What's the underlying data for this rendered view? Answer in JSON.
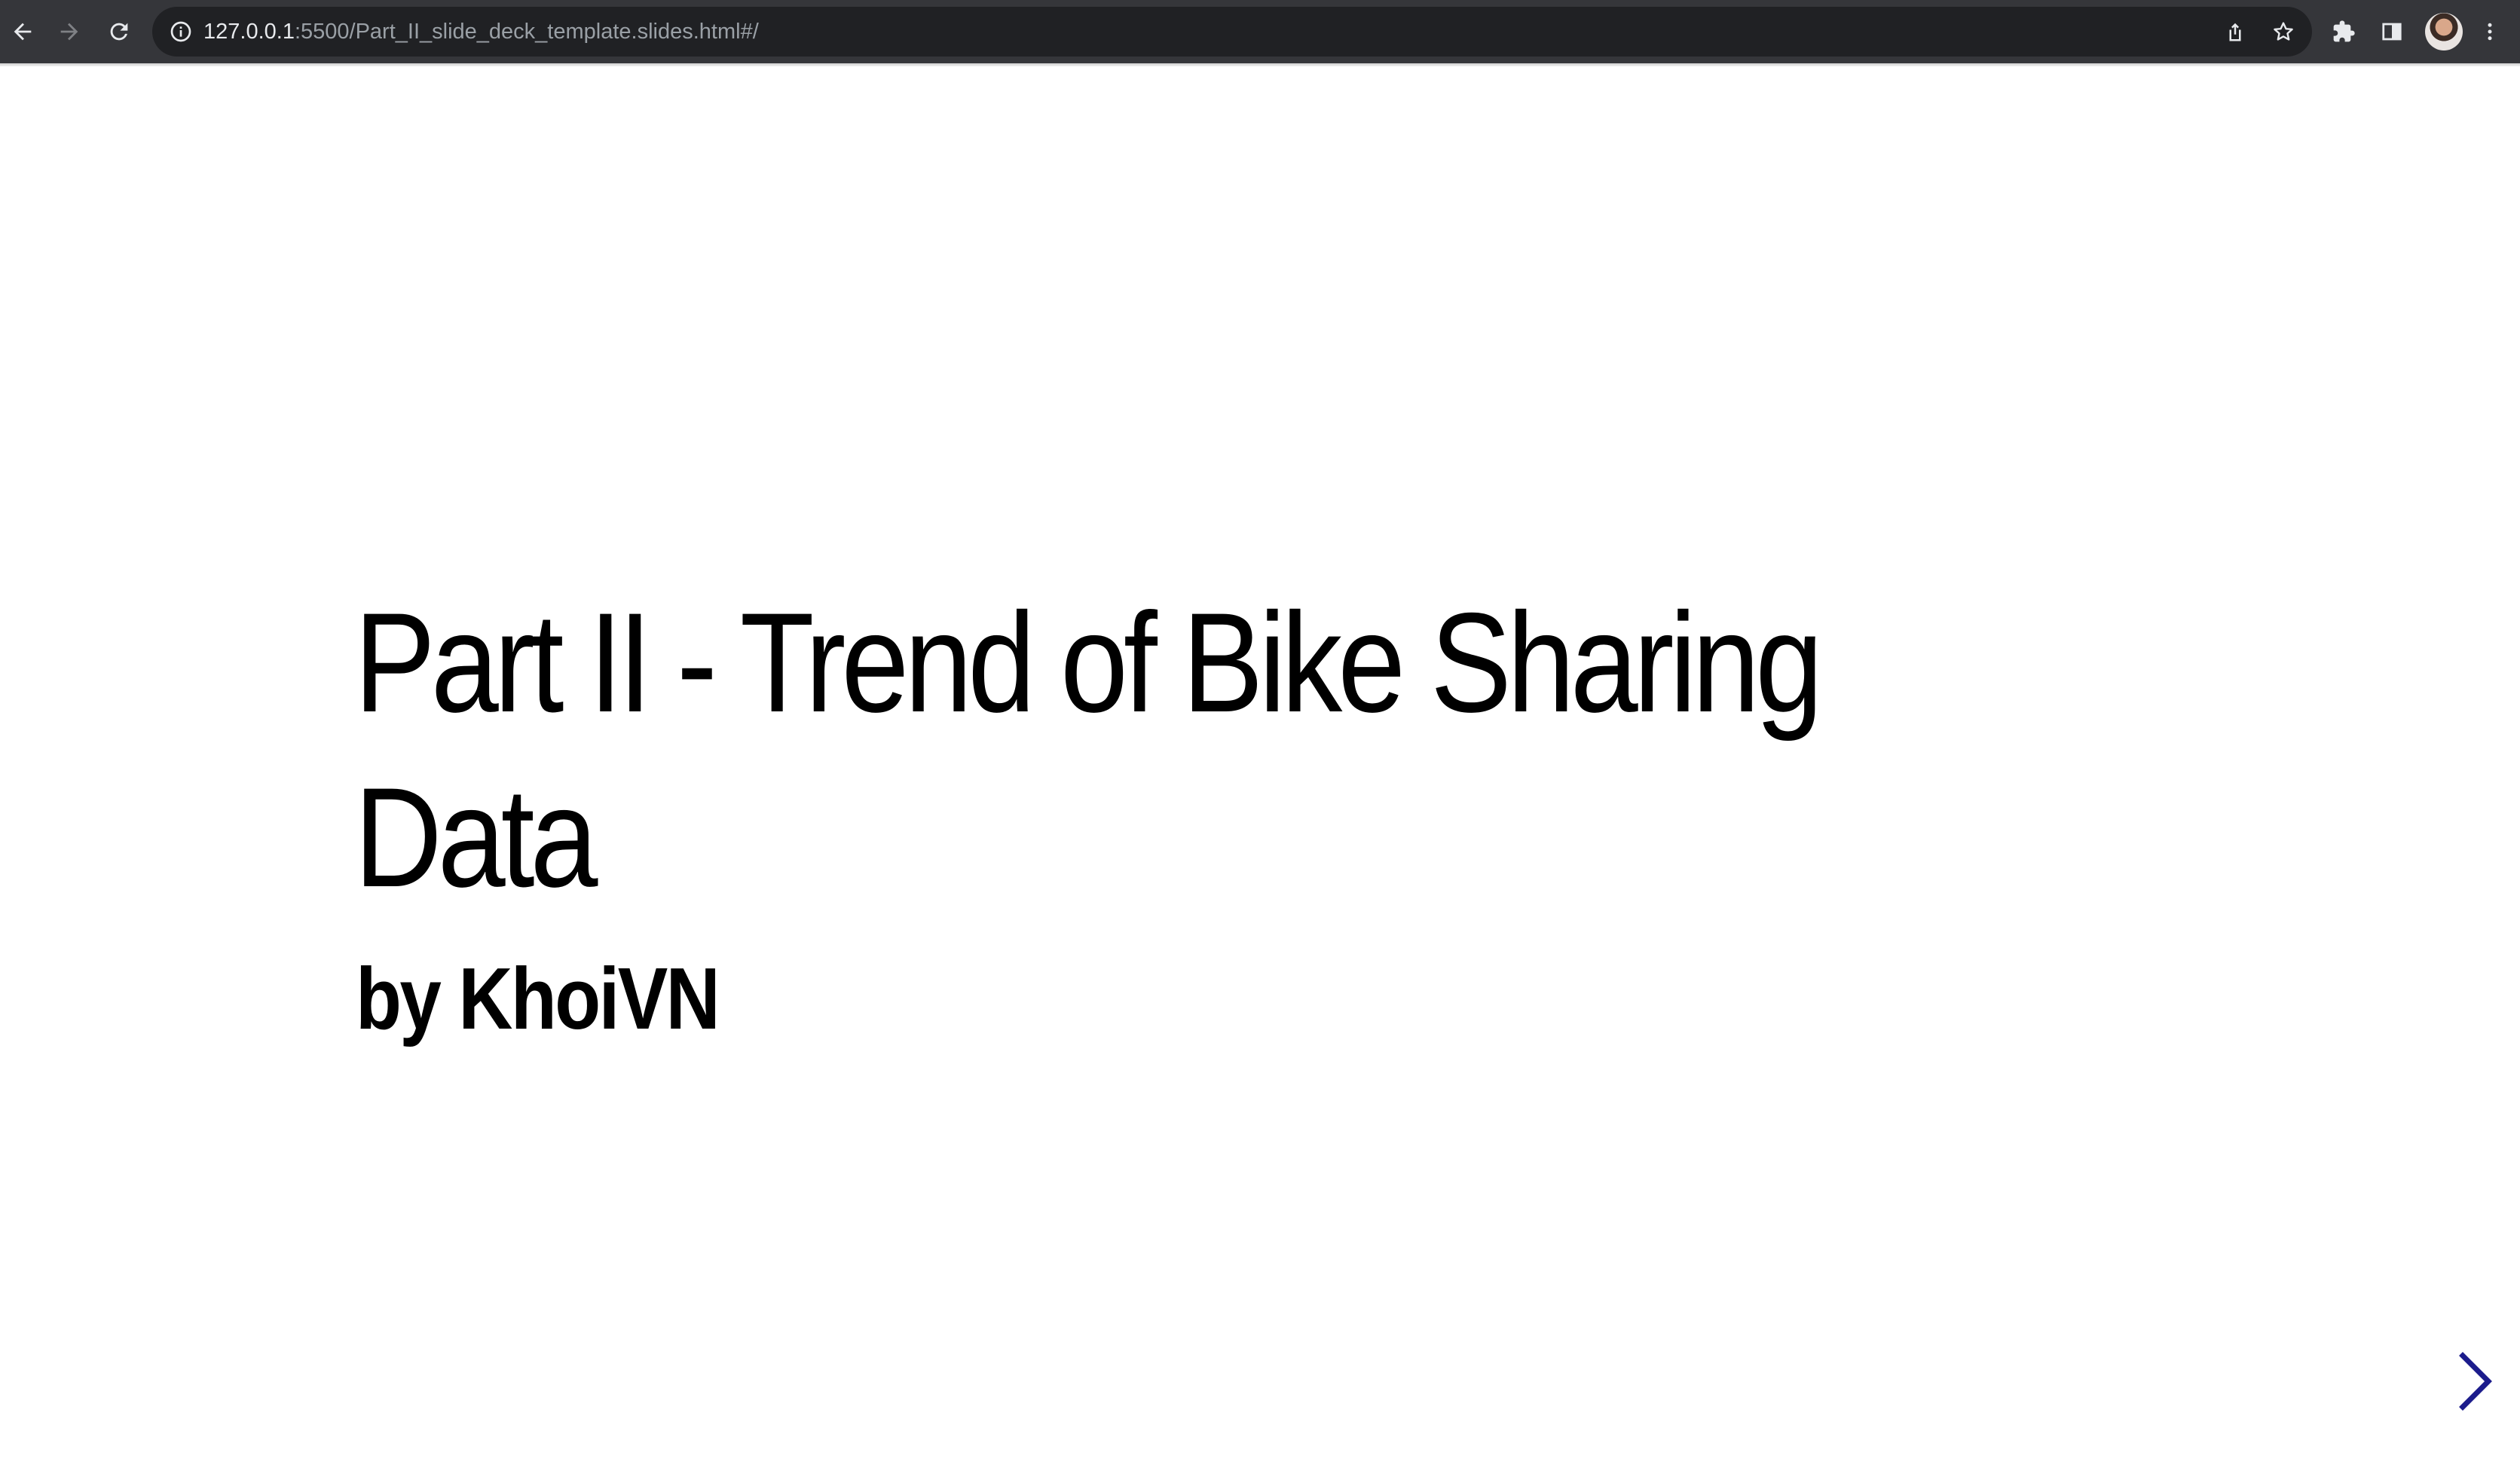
{
  "browser": {
    "url_host": "127.0.0.1",
    "url_path": ":5500/Part_II_slide_deck_template.slides.html#/",
    "icons": {
      "back": "arrow-left-icon",
      "forward": "arrow-right-icon",
      "reload": "reload-icon",
      "site_info": "info-icon",
      "share": "share-icon",
      "bookmark": "star-icon",
      "extensions": "puzzle-icon",
      "side_panel": "side-panel-icon",
      "profile": "avatar",
      "menu": "kebab-menu-icon"
    },
    "colors": {
      "toolbar_bg": "#35363a",
      "omnibox_bg": "#202124",
      "icon": "#e8eaed",
      "icon_disabled": "#7f8185"
    }
  },
  "slide": {
    "title": "Part II - Trend of Bike Sharing Data",
    "subtitle": "by KhoiVN",
    "colors": {
      "text": "#000000",
      "nav_arrow": "#1c1c8c"
    },
    "nav": {
      "next_icon": "chevron-right-icon"
    }
  }
}
